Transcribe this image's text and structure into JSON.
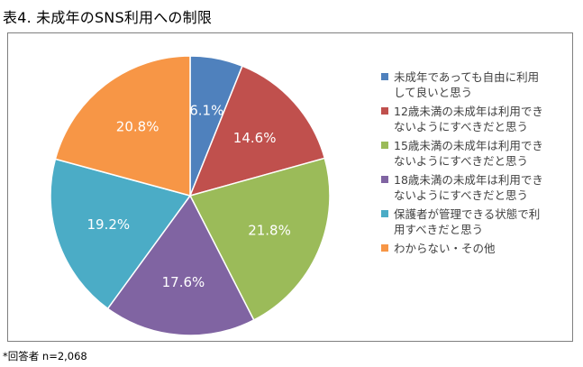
{
  "title": "表4.  未成年のSNS利用への制限",
  "footnote": "*回答者 n=2,068",
  "chart_data": {
    "type": "pie",
    "title": "",
    "slices": [
      {
        "label": "未成年であっても自由に利用\nして良いと思う",
        "value": 6.1,
        "display": "6.1%",
        "color": "#4f81bd"
      },
      {
        "label": "12歳未満の未成年は利用でき\nないようにすべきだと思う",
        "value": 14.6,
        "display": "14.6%",
        "color": "#c0504d"
      },
      {
        "label": "15歳未満の未成年は利用でき\nないようにすべきだと思う",
        "value": 21.8,
        "display": "21.8%",
        "color": "#9bbb59"
      },
      {
        "label": "18歳未満の未成年は利用でき\nないようにすべきだと思う",
        "value": 17.6,
        "display": "17.6%",
        "color": "#8064a2"
      },
      {
        "label": "保護者が管理できる状態で利\n用すべきだと思う",
        "value": 19.2,
        "display": "19.2%",
        "color": "#4bacc6"
      },
      {
        "label": "わからない・その他",
        "value": 20.8,
        "display": "20.8%",
        "color": "#f79646"
      }
    ],
    "legend_position": "right",
    "start_angle": "12 o'clock",
    "direction": "clockwise"
  }
}
